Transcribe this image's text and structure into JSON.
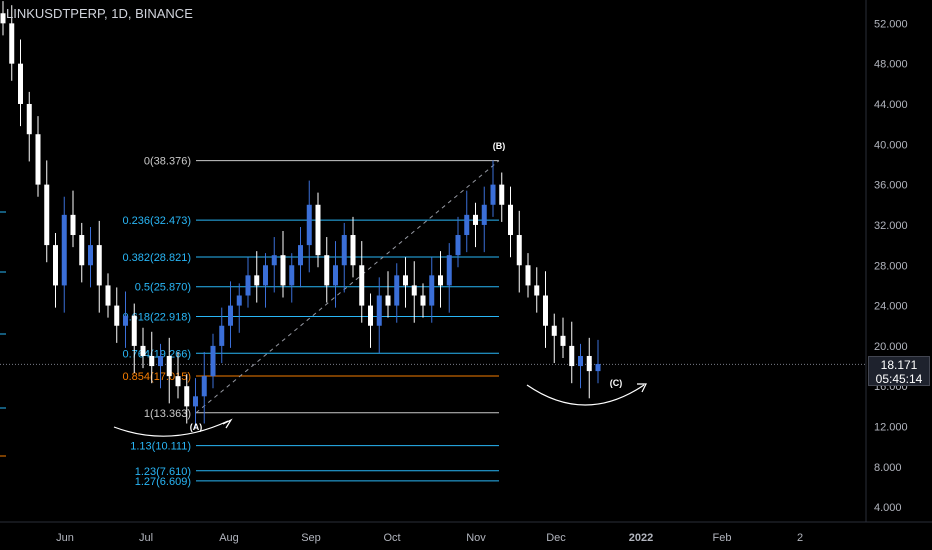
{
  "header": {
    "symbol": "LINKUSDTPERP, 1D, BINANCE"
  },
  "price_tag": {
    "price": "18.171",
    "countdown": "05:45:14"
  },
  "colors": {
    "up": "#3b6fd8",
    "down": "#ffffff",
    "fib": "#29b6f6",
    "fib_golden": "#f57c00",
    "fib_range": "#c9c9c9",
    "grid": "#2a2e39"
  },
  "chart_data": {
    "type": "candlestick",
    "title": "LINKUSDTPERP, 1D, BINANCE",
    "y_axis": {
      "side": "right",
      "ticks": [
        4.0,
        8.0,
        12.0,
        16.0,
        20.0,
        24.0,
        28.0,
        32.0,
        36.0,
        40.0,
        44.0,
        48.0,
        52.0
      ],
      "tick_labels": [
        "4.000",
        "8.000",
        "12.000",
        "16.000",
        "20.000",
        "24.000",
        "28.000",
        "32.000",
        "36.000",
        "40.000",
        "44.000",
        "48.000",
        "52.000"
      ]
    },
    "x_axis": {
      "tick_labels": [
        "Jun",
        "Jul",
        "Aug",
        "Sep",
        "Oct",
        "Nov",
        "Dec",
        "2022",
        "Feb",
        "2"
      ]
    },
    "last_price": 18.171,
    "fib_levels": [
      {
        "ratio": 0,
        "price": 38.376,
        "label": "0(38.376)"
      },
      {
        "ratio": 0.236,
        "price": 32.473,
        "label": "0.236(32.473)"
      },
      {
        "ratio": 0.382,
        "price": 28.821,
        "label": "0.382(28.821)"
      },
      {
        "ratio": 0.5,
        "price": 25.87,
        "label": "0.5(25.870)"
      },
      {
        "ratio": 0.618,
        "price": 22.918,
        "label": "0.618(22.918)"
      },
      {
        "ratio": 0.764,
        "price": 19.266,
        "label": "0.764(19.266)"
      },
      {
        "ratio": 0.854,
        "price": 17.015,
        "label": "0.854(17.015)"
      },
      {
        "ratio": 1,
        "price": 13.363,
        "label": "1(13.363)"
      },
      {
        "ratio": 1.13,
        "price": 10.111,
        "label": "1.13(10.111)"
      },
      {
        "ratio": 1.23,
        "price": 7.61,
        "label": "1.23(7.610)"
      },
      {
        "ratio": 1.27,
        "price": 6.609,
        "label": "1.27(6.609)"
      }
    ],
    "annotations": [
      "(A)",
      "(B)",
      "(C)"
    ],
    "ohlc_closes_approx": [
      52,
      48,
      44,
      41,
      36,
      30,
      26,
      33,
      31,
      28,
      30,
      26,
      24,
      22,
      23,
      20,
      19,
      18,
      19,
      17,
      16,
      14,
      15,
      17,
      20,
      22,
      24,
      25,
      27,
      26,
      28,
      29,
      26,
      28,
      30,
      34,
      29,
      26,
      28,
      31,
      28,
      24,
      22,
      25,
      24,
      27,
      26,
      25,
      24,
      27,
      26,
      29,
      31,
      33,
      32,
      34,
      36,
      34,
      31,
      28,
      26,
      25,
      22,
      21,
      20,
      18,
      19,
      17.5,
      18.2
    ]
  }
}
